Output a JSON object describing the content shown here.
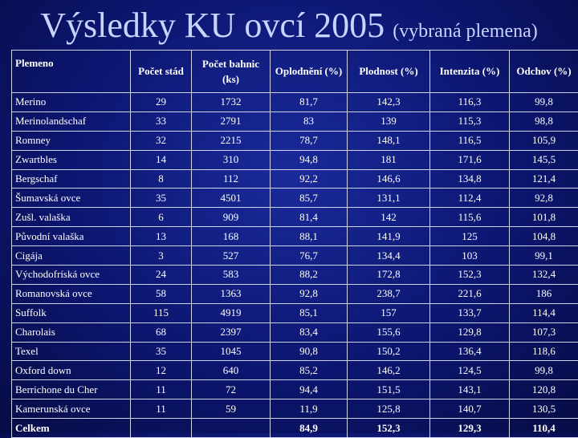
{
  "header": {
    "title": "Výsledky KU ovcí 2005",
    "subtitle": "(vybraná plemena)"
  },
  "table": {
    "columns": [
      "Plemeno",
      "Počet stád",
      "Počet bahnic (ks)",
      "Oplodnění (%)",
      "Plodnost (%)",
      "Intenzita (%)",
      "Odchov (%)"
    ],
    "rows": [
      [
        "Merino",
        "29",
        "1732",
        "81,7",
        "142,3",
        "116,3",
        "99,8"
      ],
      [
        "Merinolandschaf",
        "33",
        "2791",
        "83",
        "139",
        "115,3",
        "98,8"
      ],
      [
        "Romney",
        "32",
        "2215",
        "78,7",
        "148,1",
        "116,5",
        "105,9"
      ],
      [
        "Zwartbles",
        "14",
        "310",
        "94,8",
        "181",
        "171,6",
        "145,5"
      ],
      [
        "Bergschaf",
        "8",
        "112",
        "92,2",
        "146,6",
        "134,8",
        "121,4"
      ],
      [
        "Šumavská ovce",
        "35",
        "4501",
        "85,7",
        "131,1",
        "112,4",
        "92,8"
      ],
      [
        "Zušl. valaška",
        "6",
        "909",
        "81,4",
        "142",
        "115,6",
        "101,8"
      ],
      [
        "Původní valaška",
        "13",
        "168",
        "88,1",
        "141,9",
        "125",
        "104,8"
      ],
      [
        "Cigája",
        "3",
        "527",
        "76,7",
        "134,4",
        "103",
        "99,1"
      ],
      [
        "Východofríská ovce",
        "24",
        "583",
        "88,2",
        "172,8",
        "152,3",
        "132,4"
      ],
      [
        "Romanovská ovce",
        "58",
        "1363",
        "92,8",
        "238,7",
        "221,6",
        "186"
      ],
      [
        "Suffolk",
        "115",
        "4919",
        "85,1",
        "157",
        "133,7",
        "114,4"
      ],
      [
        "Charolais",
        "68",
        "2397",
        "83,4",
        "155,6",
        "129,8",
        "107,3"
      ],
      [
        "Texel",
        "35",
        "1045",
        "90,8",
        "150,2",
        "136,4",
        "118,6"
      ],
      [
        "Oxford down",
        "12",
        "640",
        "85,2",
        "146,2",
        "124,5",
        "99,8"
      ],
      [
        "Berrichone du Cher",
        "11",
        "72",
        "94,4",
        "151,5",
        "143,1",
        "120,8"
      ],
      [
        "Kamerunská ovce",
        "11",
        "59",
        "11,9",
        "125,8",
        "140,7",
        "130,5"
      ],
      [
        "Celkem",
        null,
        null,
        "84,9",
        "152,3",
        "129,3",
        "110,4"
      ]
    ]
  }
}
